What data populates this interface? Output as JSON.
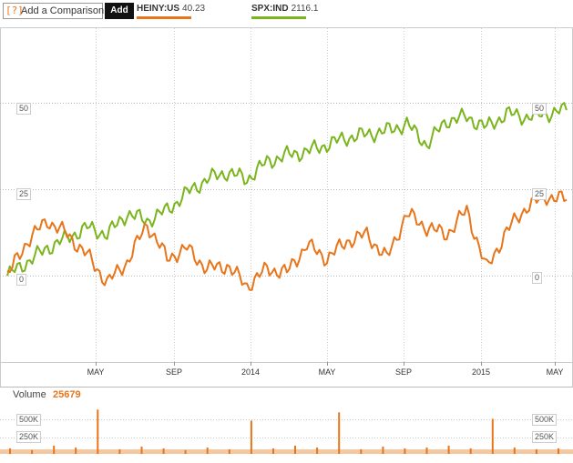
{
  "toolbar": {
    "compare_icon": "[?]",
    "compare_label": "Add a Comparison",
    "add_label": "Add"
  },
  "legend": [
    {
      "symbol": "HEINY:US",
      "value": "40.23",
      "color": "#e8751a"
    },
    {
      "symbol": "SPX:IND",
      "value": "2116.1",
      "color": "#7ab51d"
    }
  ],
  "main_axis": {
    "y_ticks": [
      "50",
      "25",
      "0"
    ],
    "x_ticks": [
      "MAY",
      "SEP",
      "2014",
      "MAY",
      "SEP",
      "2015",
      "MAY"
    ]
  },
  "volume": {
    "label": "Volume",
    "value": "25679",
    "y_ticks": [
      "500K",
      "250K"
    ]
  },
  "chart_data": [
    {
      "type": "line",
      "title": "",
      "ylabel": "",
      "ylim": [
        -25,
        72
      ],
      "x_ticks": [
        "MAY",
        "SEP",
        "2014",
        "MAY",
        "SEP",
        "2015",
        "MAY"
      ],
      "series": [
        {
          "name": "SPX:IND",
          "color": "#7ab51d",
          "x": [
            "2013-01",
            "2013-02",
            "2013-03",
            "2013-04",
            "2013-05",
            "2013-06",
            "2013-07",
            "2013-08",
            "2013-09",
            "2013-10",
            "2013-11",
            "2013-12",
            "2014-01",
            "2014-02",
            "2014-03",
            "2014-04",
            "2014-05",
            "2014-06",
            "2014-07",
            "2014-08",
            "2014-09",
            "2014-10",
            "2014-11",
            "2014-12",
            "2015-01",
            "2015-02",
            "2015-03",
            "2015-04",
            "2015-05"
          ],
          "values": [
            0,
            4,
            8,
            11,
            14,
            12,
            18,
            16,
            19,
            24,
            28,
            30,
            28,
            33,
            35,
            36,
            38,
            40,
            41,
            42,
            44,
            38,
            45,
            46,
            43,
            47,
            46,
            47,
            48
          ]
        },
        {
          "name": "HEINY:US",
          "color": "#e8751a",
          "x": [
            "2013-01",
            "2013-02",
            "2013-03",
            "2013-04",
            "2013-05",
            "2013-06",
            "2013-07",
            "2013-08",
            "2013-09",
            "2013-10",
            "2013-11",
            "2013-12",
            "2014-01",
            "2014-02",
            "2014-03",
            "2014-04",
            "2014-05",
            "2014-06",
            "2014-07",
            "2014-08",
            "2014-09",
            "2014-10",
            "2014-11",
            "2014-12",
            "2015-01",
            "2015-02",
            "2015-03",
            "2015-04",
            "2015-05"
          ],
          "values": [
            0,
            10,
            16,
            12,
            6,
            -2,
            4,
            15,
            5,
            8,
            2,
            3,
            -3,
            2,
            1,
            9,
            5,
            10,
            12,
            5,
            18,
            14,
            12,
            19,
            2,
            13,
            20,
            23,
            22
          ]
        }
      ]
    },
    {
      "type": "bar",
      "title": "Volume",
      "ylabel": "",
      "ylim": [
        0,
        650000
      ],
      "y_ticks": [
        "500K",
        "250K"
      ],
      "series": [
        {
          "name": "HEINY:US",
          "color": "#e8751a",
          "values": [
            60000,
            40000,
            90000,
            70000,
            480000,
            50000,
            80000,
            60000,
            40000,
            70000,
            50000,
            360000,
            60000,
            90000,
            70000,
            450000,
            50000,
            80000,
            60000,
            70000,
            90000,
            60000,
            380000,
            70000,
            50000,
            60000
          ]
        }
      ]
    }
  ]
}
